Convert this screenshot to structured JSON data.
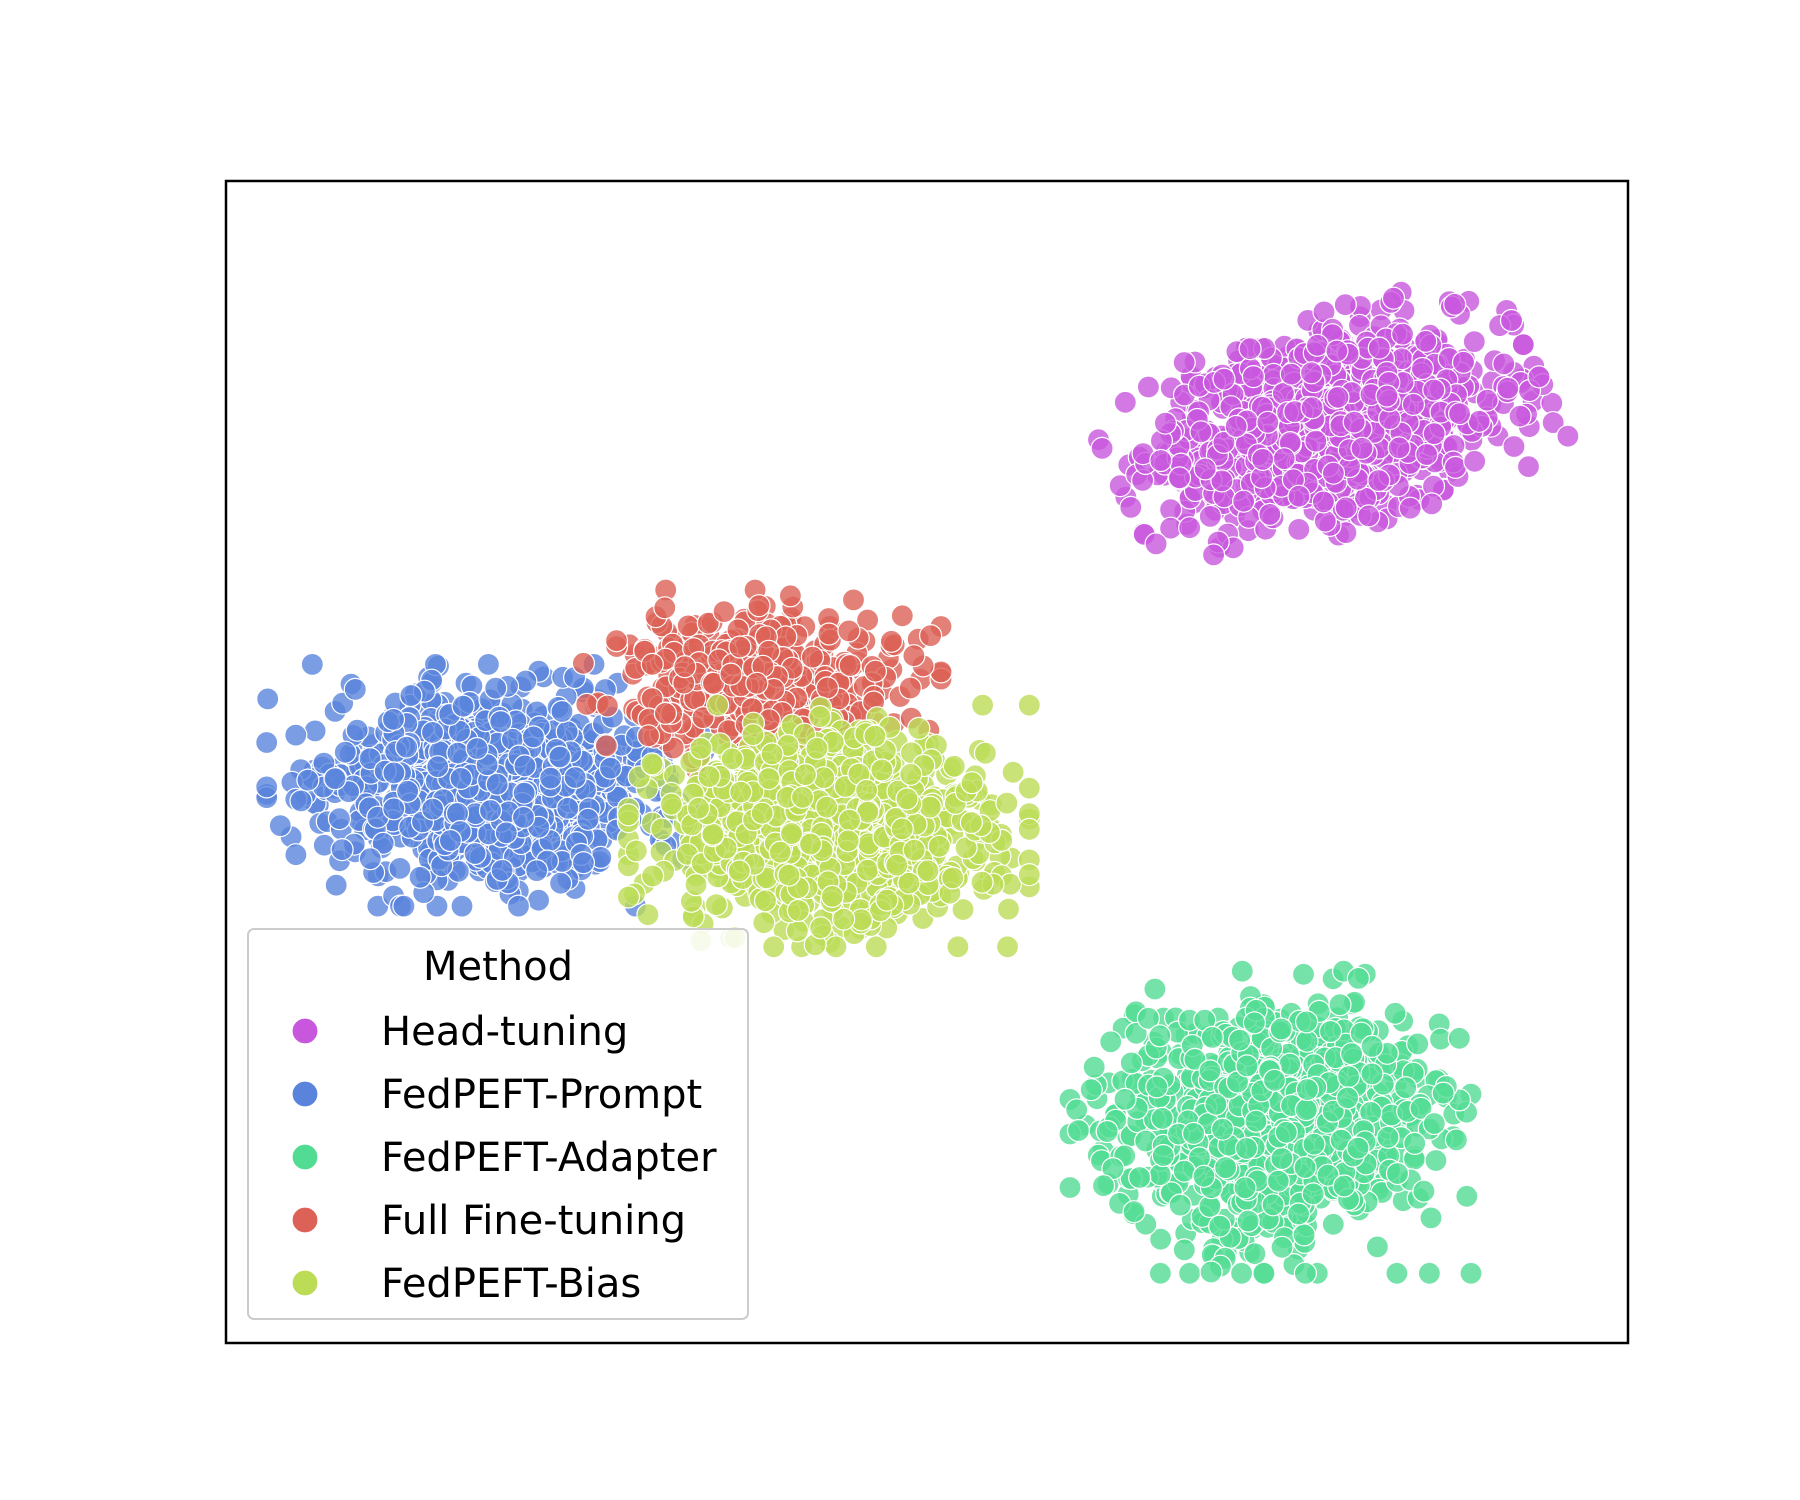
{
  "chart_data": {
    "type": "scatter",
    "title": "",
    "xlabel": "",
    "ylabel": "",
    "xlim": [
      -100,
      100
    ],
    "ylim": [
      -100,
      100
    ],
    "axes_visible": false,
    "grid": false,
    "legend": {
      "title": "Method",
      "placement": "lower-left"
    },
    "series": [
      {
        "name": "Head-tuning",
        "color": "#c857dd",
        "n_points": 1200,
        "center": [
          57,
          58
        ],
        "spread": [
          12,
          7
        ],
        "rotation_deg": 22
      },
      {
        "name": "FedPEFT-Prompt",
        "color": "#5a84dc",
        "n_points": 1000,
        "center": [
          -63,
          -4
        ],
        "spread": [
          12,
          8
        ],
        "rotation_deg": 0
      },
      {
        "name": "FedPEFT-Adapter",
        "color": "#52dc93",
        "n_points": 1000,
        "center": [
          49,
          -62
        ],
        "spread": [
          11,
          10
        ],
        "rotation_deg": 0
      },
      {
        "name": "Full Fine-tuning",
        "color": "#dc6156",
        "n_points": 450,
        "center": [
          -24,
          14
        ],
        "spread": [
          10,
          6
        ],
        "rotation_deg": 0
      },
      {
        "name": "FedPEFT-Bias",
        "color": "#bcdc56",
        "n_points": 1000,
        "center": [
          -14,
          -11
        ],
        "spread": [
          11,
          8
        ],
        "rotation_deg": 0
      }
    ]
  }
}
